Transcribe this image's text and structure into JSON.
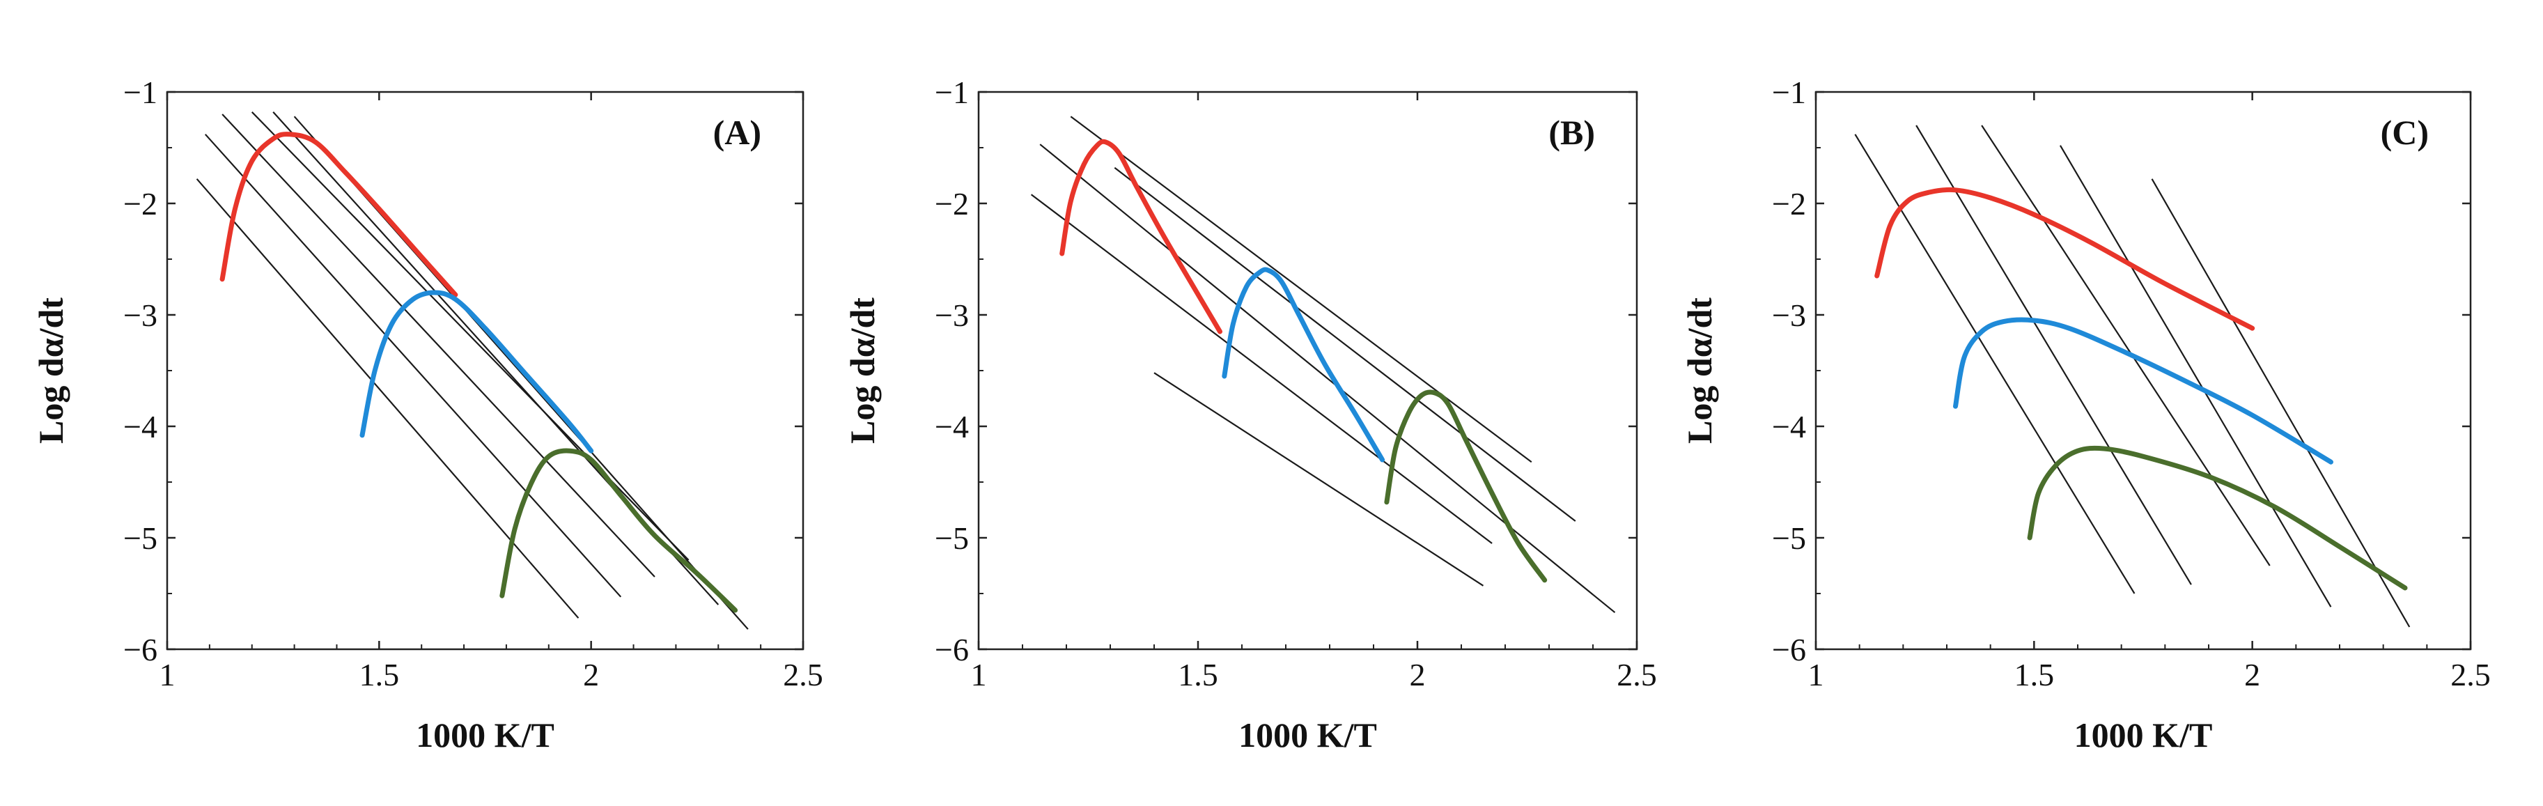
{
  "chart_data": [
    {
      "type": "line",
      "panel_label": "(A)",
      "xlabel": "1000 K/T",
      "ylabel": "Log dα/dt",
      "xlim": [
        1,
        2.5
      ],
      "ylim": [
        -6,
        -1
      ],
      "xticks": [
        1,
        1.5,
        2,
        2.5
      ],
      "xtick_labels": [
        "1",
        "1.5",
        "2",
        "2.5"
      ],
      "yticks": [
        -1,
        -2,
        -3,
        -4,
        -5,
        -6
      ],
      "ytick_labels": [
        "−1",
        "−2",
        "−3",
        "−4",
        "−5",
        "−6"
      ],
      "reference_lines": [
        {
          "x": [
            1.07,
            1.97
          ],
          "y": [
            -1.78,
            -5.72
          ]
        },
        {
          "x": [
            1.09,
            2.07
          ],
          "y": [
            -1.38,
            -5.53
          ]
        },
        {
          "x": [
            1.13,
            2.15
          ],
          "y": [
            -1.2,
            -5.35
          ]
        },
        {
          "x": [
            1.2,
            2.23
          ],
          "y": [
            -1.18,
            -5.2
          ]
        },
        {
          "x": [
            1.25,
            2.3
          ],
          "y": [
            -1.18,
            -5.6
          ]
        },
        {
          "x": [
            1.3,
            2.37
          ],
          "y": [
            -1.22,
            -5.82
          ]
        }
      ],
      "series": [
        {
          "name": "red",
          "color": "#e8352a",
          "x": [
            1.13,
            1.16,
            1.2,
            1.25,
            1.29,
            1.35,
            1.42,
            1.5,
            1.6,
            1.68
          ],
          "y": [
            -2.68,
            -2.05,
            -1.62,
            -1.42,
            -1.38,
            -1.45,
            -1.72,
            -2.05,
            -2.48,
            -2.82
          ]
        },
        {
          "name": "blue",
          "color": "#1f8ad8",
          "x": [
            1.46,
            1.49,
            1.53,
            1.58,
            1.63,
            1.68,
            1.75,
            1.85,
            1.95,
            2.0
          ],
          "y": [
            -4.08,
            -3.5,
            -3.08,
            -2.86,
            -2.8,
            -2.86,
            -3.12,
            -3.55,
            -3.98,
            -4.22
          ]
        },
        {
          "name": "green",
          "color": "#4a6e2c",
          "x": [
            1.79,
            1.82,
            1.86,
            1.9,
            1.95,
            2.0,
            2.07,
            2.15,
            2.25,
            2.34
          ],
          "y": [
            -5.52,
            -4.92,
            -4.5,
            -4.27,
            -4.22,
            -4.3,
            -4.62,
            -4.98,
            -5.32,
            -5.65
          ]
        }
      ]
    },
    {
      "type": "line",
      "panel_label": "(B)",
      "xlabel": "1000 K/T",
      "ylabel": "Log dα/dt",
      "xlim": [
        1,
        2.5
      ],
      "ylim": [
        -6,
        -1
      ],
      "xticks": [
        1,
        1.5,
        2,
        2.5
      ],
      "xtick_labels": [
        "1",
        "1.5",
        "2",
        "2.5"
      ],
      "yticks": [
        -1,
        -2,
        -3,
        -4,
        -5,
        -6
      ],
      "ytick_labels": [
        "−1",
        "−2",
        "−3",
        "−4",
        "−5",
        "−6"
      ],
      "reference_lines": [
        {
          "x": [
            1.12,
            2.17
          ],
          "y": [
            -1.92,
            -5.05
          ]
        },
        {
          "x": [
            1.14,
            2.45
          ],
          "y": [
            -1.47,
            -5.67
          ]
        },
        {
          "x": [
            1.21,
            2.26
          ],
          "y": [
            -1.22,
            -4.32
          ]
        },
        {
          "x": [
            1.31,
            2.36
          ],
          "y": [
            -1.68,
            -4.85
          ]
        },
        {
          "x": [
            1.4,
            2.15
          ],
          "y": [
            -3.52,
            -5.43
          ]
        }
      ],
      "series": [
        {
          "name": "red",
          "color": "#e8352a",
          "x": [
            1.19,
            1.21,
            1.24,
            1.27,
            1.29,
            1.32,
            1.36,
            1.42,
            1.49,
            1.55
          ],
          "y": [
            -2.45,
            -1.98,
            -1.65,
            -1.48,
            -1.45,
            -1.55,
            -1.85,
            -2.28,
            -2.75,
            -3.15
          ]
        },
        {
          "name": "blue",
          "color": "#1f8ad8",
          "x": [
            1.56,
            1.58,
            1.61,
            1.64,
            1.66,
            1.69,
            1.73,
            1.79,
            1.86,
            1.92
          ],
          "y": [
            -3.55,
            -3.08,
            -2.75,
            -2.62,
            -2.6,
            -2.7,
            -3.0,
            -3.45,
            -3.9,
            -4.3
          ]
        },
        {
          "name": "green",
          "color": "#4a6e2c",
          "x": [
            1.93,
            1.95,
            1.98,
            2.01,
            2.04,
            2.07,
            2.11,
            2.17,
            2.23,
            2.29
          ],
          "y": [
            -4.68,
            -4.2,
            -3.88,
            -3.72,
            -3.7,
            -3.8,
            -4.12,
            -4.6,
            -5.05,
            -5.38
          ]
        }
      ]
    },
    {
      "type": "line",
      "panel_label": "(C)",
      "xlabel": "1000 K/T",
      "ylabel": "Log dα/dt",
      "xlim": [
        1,
        2.5
      ],
      "ylim": [
        -6,
        -1
      ],
      "xticks": [
        1,
        1.5,
        2,
        2.5
      ],
      "xtick_labels": [
        "1",
        "1.5",
        "2",
        "2.5"
      ],
      "yticks": [
        -1,
        -2,
        -3,
        -4,
        -5,
        -6
      ],
      "ytick_labels": [
        "−1",
        "−2",
        "−3",
        "−4",
        "−5",
        "−6"
      ],
      "reference_lines": [
        {
          "x": [
            1.09,
            1.73
          ],
          "y": [
            -1.38,
            -5.5
          ]
        },
        {
          "x": [
            1.23,
            1.86
          ],
          "y": [
            -1.3,
            -5.42
          ]
        },
        {
          "x": [
            1.38,
            2.04
          ],
          "y": [
            -1.3,
            -5.25
          ]
        },
        {
          "x": [
            1.56,
            2.18
          ],
          "y": [
            -1.48,
            -5.62
          ]
        },
        {
          "x": [
            1.77,
            2.36
          ],
          "y": [
            -1.78,
            -5.8
          ]
        }
      ],
      "series": [
        {
          "name": "red",
          "color": "#e8352a",
          "x": [
            1.14,
            1.17,
            1.21,
            1.26,
            1.32,
            1.4,
            1.5,
            1.63,
            1.8,
            2.0
          ],
          "y": [
            -2.65,
            -2.2,
            -1.98,
            -1.9,
            -1.88,
            -1.95,
            -2.1,
            -2.35,
            -2.72,
            -3.12
          ]
        },
        {
          "name": "blue",
          "color": "#1f8ad8",
          "x": [
            1.32,
            1.34,
            1.38,
            1.43,
            1.5,
            1.58,
            1.7,
            1.85,
            2.0,
            2.18
          ],
          "y": [
            -3.82,
            -3.38,
            -3.15,
            -3.06,
            -3.05,
            -3.12,
            -3.32,
            -3.6,
            -3.9,
            -4.32
          ]
        },
        {
          "name": "green",
          "color": "#4a6e2c",
          "x": [
            1.49,
            1.51,
            1.55,
            1.6,
            1.66,
            1.75,
            1.9,
            2.05,
            2.2,
            2.35
          ],
          "y": [
            -5.0,
            -4.6,
            -4.35,
            -4.22,
            -4.2,
            -4.27,
            -4.45,
            -4.72,
            -5.08,
            -5.45
          ]
        }
      ]
    }
  ]
}
